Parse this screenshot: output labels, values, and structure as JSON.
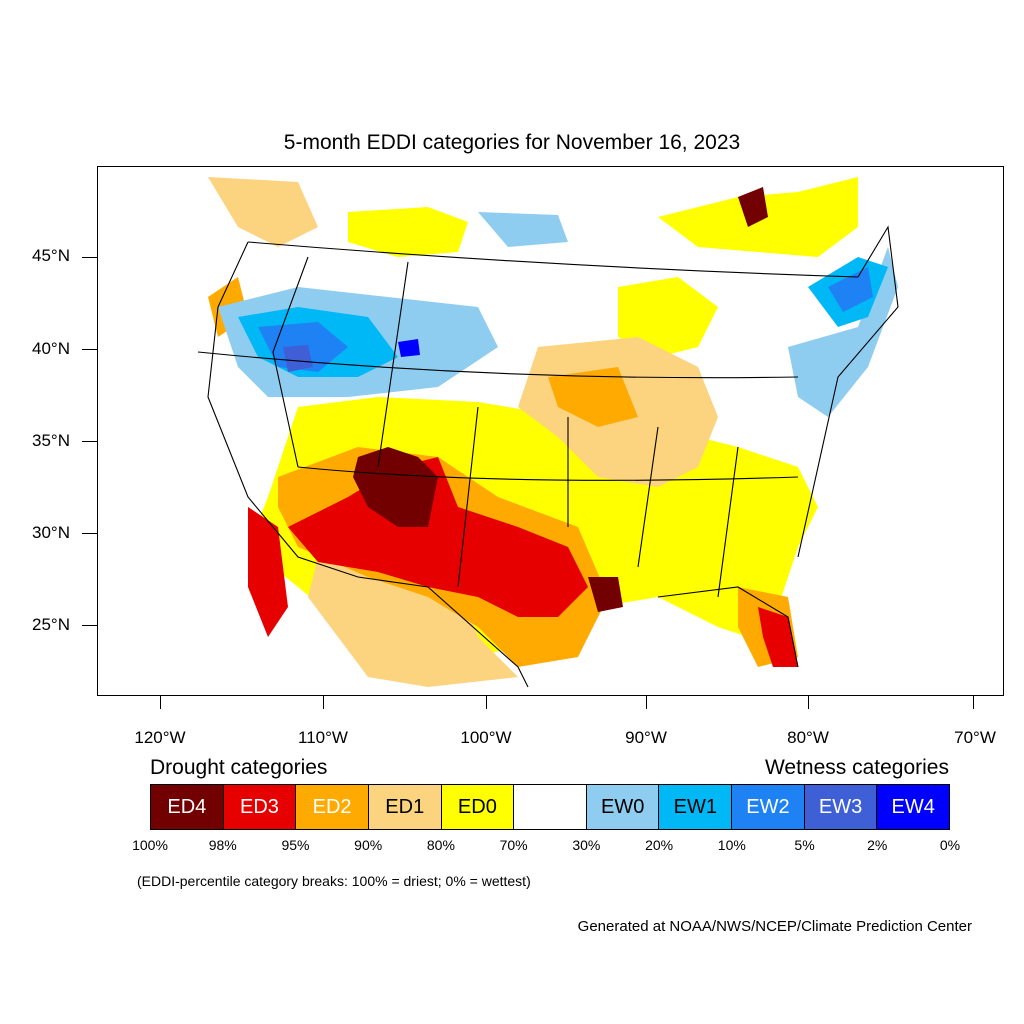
{
  "title": "5-month EDDI categories for November 16, 2023",
  "lat_labels": [
    "45°N",
    "40°N",
    "35°N",
    "30°N",
    "25°N"
  ],
  "lon_labels": [
    "120°W",
    "110°W",
    "100°W",
    "90°W",
    "80°W",
    "70°W"
  ],
  "legend": {
    "drought_heading": "Drought categories",
    "wetness_heading": "Wetness categories",
    "categories": [
      {
        "label": "ED4",
        "color": "#730000",
        "text_color": "#ffffff"
      },
      {
        "label": "ED3",
        "color": "#e60000",
        "text_color": "#ffffff"
      },
      {
        "label": "ED2",
        "color": "#ffaa00",
        "text_color": "#ffffff"
      },
      {
        "label": "ED1",
        "color": "#fcd37f",
        "text_color": "#000000"
      },
      {
        "label": "ED0",
        "color": "#ffff00",
        "text_color": "#000000"
      },
      {
        "label": "",
        "color": "#ffffff",
        "text_color": "#000000"
      },
      {
        "label": "EW0",
        "color": "#8fcdf0",
        "text_color": "#000000"
      },
      {
        "label": "EW1",
        "color": "#00b8f5",
        "text_color": "#000000"
      },
      {
        "label": "EW2",
        "color": "#1e82f5",
        "text_color": "#ffffff"
      },
      {
        "label": "EW3",
        "color": "#3e5fd6",
        "text_color": "#ffffff"
      },
      {
        "label": "EW4",
        "color": "#0000ff",
        "text_color": "#ffffff"
      }
    ],
    "percentiles": [
      "100%",
      "98%",
      "95%",
      "90%",
      "80%",
      "70%",
      "30%",
      "20%",
      "10%",
      "5%",
      "2%",
      "0%"
    ]
  },
  "note": "(EDDI-percentile category breaks: 100% = driest; 0% = wettest)",
  "credit": "Generated at NOAA/NWS/NCEP/Climate Prediction Center"
}
